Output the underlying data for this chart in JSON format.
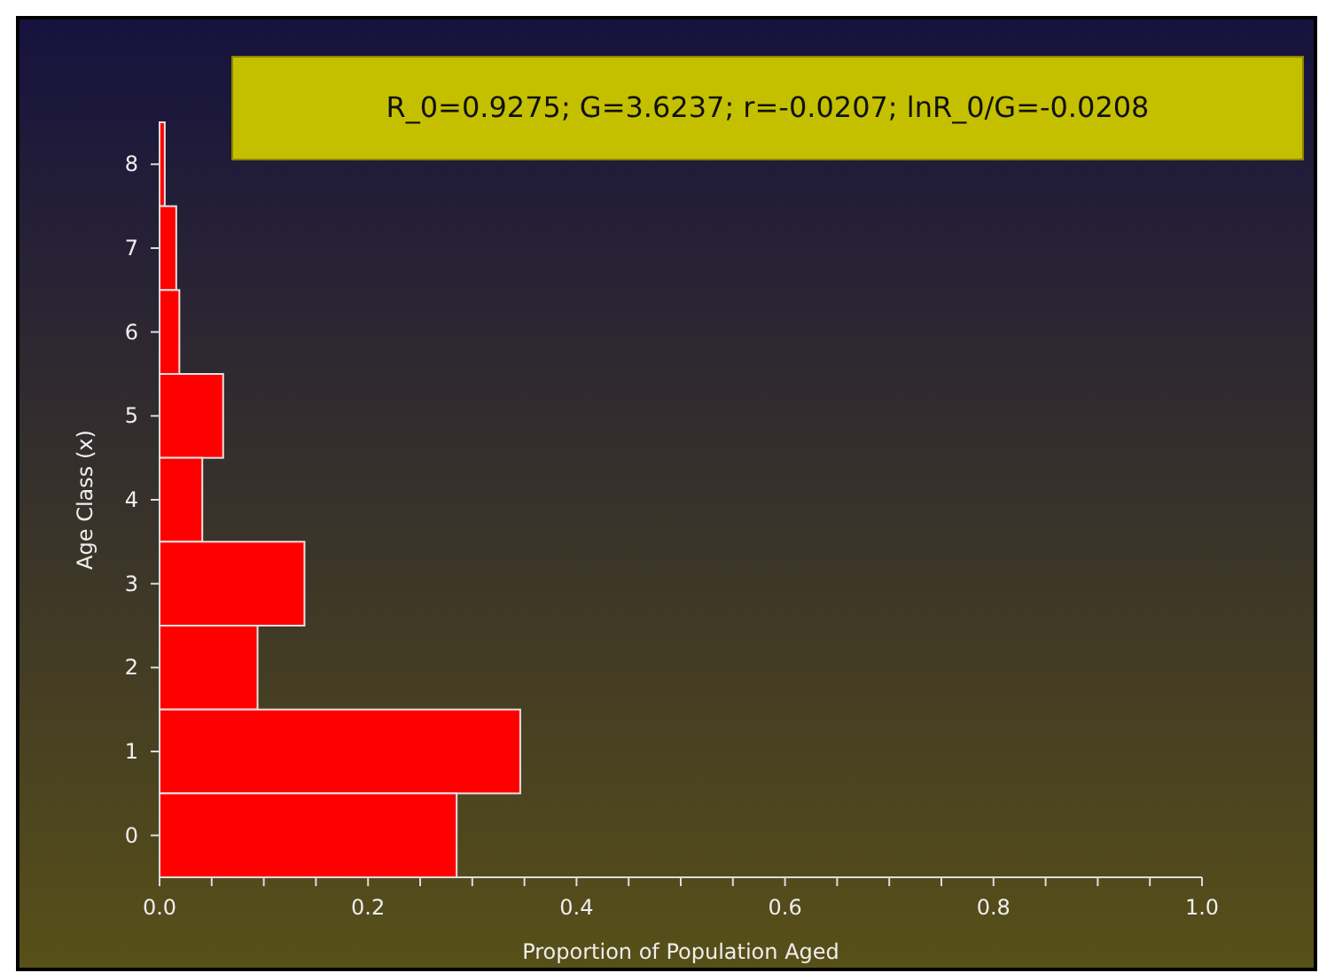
{
  "chart_data": {
    "type": "bar",
    "orientation": "horizontal",
    "xlabel": "Proportion of Population Aged",
    "ylabel": "Age Class (x)",
    "annotations": [
      "R_0=0.9275; G=3.6237; r=-0.0207; lnR_0/G=-0.0208"
    ],
    "categories": [
      "8",
      "7",
      "6",
      "5",
      "4",
      "3",
      "2",
      "1",
      "0"
    ],
    "values": [
      0.005,
      0.016,
      0.019,
      0.061,
      0.041,
      0.139,
      0.094,
      0.346,
      0.285
    ],
    "color": "#ff0000",
    "xlim": [
      0,
      1
    ],
    "xticks": [
      {
        "value": 0,
        "label": "0.0"
      },
      {
        "value": 0.05,
        "label": null
      },
      {
        "value": 0.1,
        "label": null
      },
      {
        "value": 0.15,
        "label": null
      },
      {
        "value": 0.2,
        "label": "0.2"
      },
      {
        "value": 0.25,
        "label": null
      },
      {
        "value": 0.3,
        "label": null
      },
      {
        "value": 0.35,
        "label": null
      },
      {
        "value": 0.4,
        "label": "0.4"
      },
      {
        "value": 0.45,
        "label": null
      },
      {
        "value": 0.5,
        "label": null
      },
      {
        "value": 0.55,
        "label": null
      },
      {
        "value": 0.6,
        "label": "0.6"
      },
      {
        "value": 0.65,
        "label": null
      },
      {
        "value": 0.7,
        "label": null
      },
      {
        "value": 0.75,
        "label": null
      },
      {
        "value": 0.8,
        "label": "0.8"
      },
      {
        "value": 0.85,
        "label": null
      },
      {
        "value": 0.9,
        "label": null
      },
      {
        "value": 0.95,
        "label": null
      },
      {
        "value": 1,
        "label": "1.0"
      }
    ],
    "grid": false
  }
}
